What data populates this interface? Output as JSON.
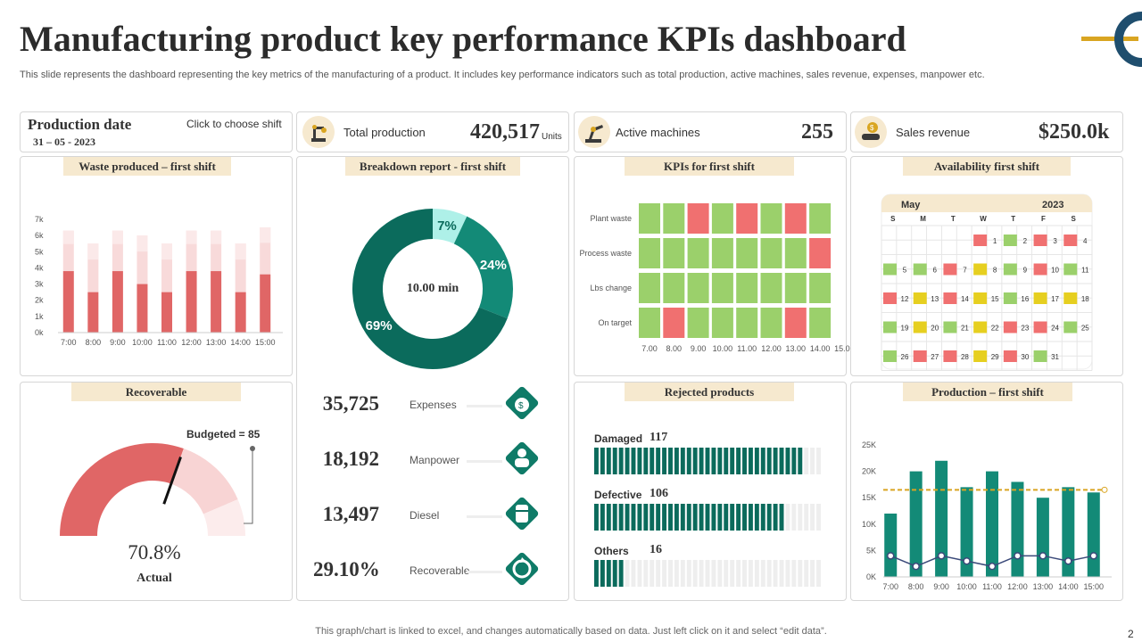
{
  "header": {
    "title": "Manufacturing product key performance KPIs dashboard",
    "subtitle": "This slide represents the dashboard representing the key metrics of the manufacturing of a product. It includes key performance indicators such as total production, active machines, sales revenue, expenses, manpower etc."
  },
  "production_date": {
    "label": "Production date",
    "date": "31 – 05 - 2023",
    "shift_prompt": "Click to  choose shift"
  },
  "kpis": {
    "total_production": {
      "label": "Total production",
      "value": "420,517",
      "unit": "Units"
    },
    "active_machines": {
      "label": "Active machines",
      "value": "255"
    },
    "sales_revenue": {
      "label": "Sales revenue",
      "value": "$250.0k"
    }
  },
  "panels": {
    "waste": "Waste produced – first shift",
    "breakdown": "Breakdown report - first shift",
    "kpis_first_shift": "KPIs for first shift",
    "availability": "Availability first shift",
    "recoverable": "Recoverable",
    "rejected": "Rejected products",
    "production_shift": "Production – first shift"
  },
  "breakdown_center": "10.00 min",
  "recoverable_gauge": {
    "budget_label": "Budgeted  = 85",
    "actual_value": "70.8%",
    "actual_label": "Actual",
    "actual": 70.8,
    "budget": 85
  },
  "stats": [
    {
      "value": "35,725",
      "label": "Expenses",
      "icon": "money-bag-icon"
    },
    {
      "value": "18,192",
      "label": "Manpower",
      "icon": "worker-icon"
    },
    {
      "value": "13,497",
      "label": "Diesel",
      "icon": "fuel-barrel-icon"
    },
    {
      "value": "29.10%",
      "label": "Recoverable",
      "icon": "recycle-icon"
    }
  ],
  "rejected": [
    {
      "label": "Damaged",
      "value": "117",
      "count": 117
    },
    {
      "label": "Defective",
      "value": "106",
      "count": 106
    },
    {
      "label": "Others",
      "value": "16",
      "count": 16
    }
  ],
  "calendar": {
    "month": "May",
    "year": "2023",
    "weekdays": [
      "S",
      "M",
      "T",
      "W",
      "T",
      "F",
      "S"
    ],
    "weeks": [
      [
        "",
        "",
        "",
        "1",
        "2",
        "3",
        "4"
      ],
      [
        "5",
        "6",
        "7",
        "8",
        "9",
        "10",
        "11"
      ],
      [
        "12",
        "13",
        "14",
        "15",
        "16",
        "17",
        "18"
      ],
      [
        "19",
        "20",
        "21",
        "22",
        "23",
        "24",
        "25"
      ],
      [
        "26",
        "27",
        "28",
        "29",
        "30",
        "31",
        ""
      ]
    ],
    "status": [
      [
        "",
        "",
        "",
        "red",
        "green",
        "red",
        "red"
      ],
      [
        "green",
        "green",
        "red",
        "yellow",
        "green",
        "red",
        "green"
      ],
      [
        "red",
        "yellow",
        "red",
        "yellow",
        "green",
        "yellow",
        "yellow"
      ],
      [
        "green",
        "yellow",
        "green",
        "yellow",
        "red",
        "red",
        "green"
      ],
      [
        "green",
        "red",
        "red",
        "yellow",
        "red",
        "green",
        ""
      ]
    ]
  },
  "footer": {
    "note": "This graph/chart is linked to excel,  and changes automatically based on data. Just left click on it and select “edit data”.",
    "page": "2"
  },
  "colors": {
    "accent_red": "#e06666",
    "teal_dark": "#0b6b5c",
    "teal": "#138a77",
    "teal_light": "#aef0e8",
    "gold": "#d9a521",
    "cream": "#f6e9cf",
    "green_cell": "#9bd06b",
    "red_cell": "#f07070",
    "yellow_cell": "#e6cf20"
  },
  "chart_data": [
    {
      "type": "bar",
      "title": "Waste produced – first shift",
      "categories": [
        "7:00",
        "8:00",
        "9:00",
        "10:00",
        "11:00",
        "12:00",
        "13:00",
        "14:00",
        "15:00"
      ],
      "ylim": [
        0,
        7000
      ],
      "yticks": [
        "0k",
        "1k",
        "2k",
        "3k",
        "4k",
        "5k",
        "6k",
        "7k"
      ],
      "series": [
        {
          "values": [
            3800,
            2500,
            3800,
            3000,
            2500,
            3800,
            3800,
            2500,
            3600
          ]
        },
        {
          "values": [
            6300,
            5500,
            6300,
            6000,
            5500,
            6300,
            6300,
            5500,
            6500
          ]
        }
      ]
    },
    {
      "type": "pie",
      "title": "Breakdown report - first shift",
      "labels": [
        "7%",
        "24%",
        "69%"
      ],
      "values": [
        7,
        24,
        69
      ]
    },
    {
      "type": "heatmap",
      "title": "KPIs for first shift",
      "rows": [
        "Plant waste",
        "Process waste",
        "Lbs change",
        "On target"
      ],
      "columns": [
        "7.00",
        "8.00",
        "9.00",
        "10.00",
        "11.00",
        "12.00",
        "13.00",
        "14.00",
        "15.00"
      ],
      "values": [
        [
          "green",
          "green",
          "red",
          "green",
          "red",
          "green",
          "red",
          "green",
          ""
        ],
        [
          "green",
          "green",
          "green",
          "green",
          "green",
          "green",
          "green",
          "red",
          ""
        ],
        [
          "green",
          "green",
          "green",
          "green",
          "green",
          "green",
          "green",
          "green",
          ""
        ],
        [
          "green",
          "red",
          "green",
          "green",
          "green",
          "green",
          "red",
          "green",
          ""
        ]
      ]
    },
    {
      "type": "bar",
      "title": "Production – first shift",
      "categories": [
        "7:00",
        "8:00",
        "9:00",
        "10:00",
        "11:00",
        "12:00",
        "13:00",
        "14:00",
        "15:00"
      ],
      "yticks": [
        "0K",
        "5K",
        "10K",
        "15K",
        "20K",
        "25K"
      ],
      "ylim": [
        0,
        25000
      ],
      "series": [
        {
          "type": "bar",
          "values": [
            12000,
            20000,
            22000,
            17000,
            20000,
            18000,
            15000,
            17000,
            16000
          ]
        },
        {
          "type": "line",
          "values": [
            4000,
            2000,
            4000,
            3000,
            2000,
            4000,
            4000,
            3000,
            4000
          ]
        },
        {
          "type": "line",
          "style": "dashed",
          "values": [
            16500,
            16500,
            16500,
            16500,
            16500,
            16500,
            16500,
            16500,
            16500
          ]
        }
      ]
    }
  ]
}
